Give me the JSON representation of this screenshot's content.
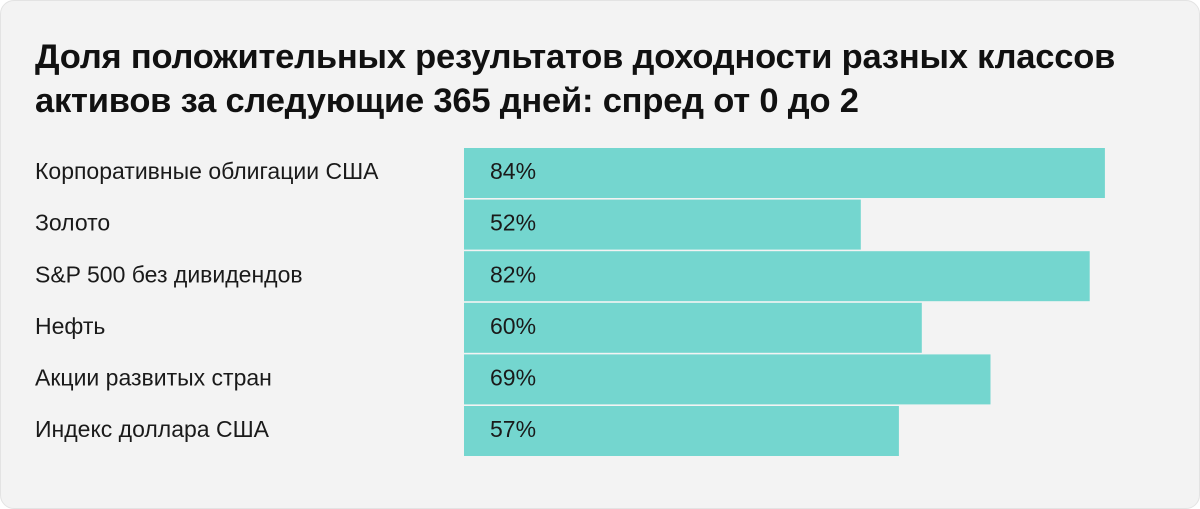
{
  "chart_data": {
    "type": "bar",
    "orientation": "horizontal",
    "title": "Доля положительных результатов доходности разных классов активов за следующие 365 дней: спред от 0 до 2",
    "categories": [
      "Корпоративные облигации США",
      "Золото",
      "S&P 500 без дивидендов",
      "Нефть",
      "Акции развитых стран",
      "Индекс доллара США"
    ],
    "values": [
      84,
      52,
      82,
      60,
      69,
      57
    ],
    "data_labels": [
      "84%",
      "52%",
      "82%",
      "60%",
      "69%",
      "57%"
    ],
    "unit": "%",
    "xlim": [
      0,
      100
    ],
    "grid": false,
    "legend": "none",
    "bar_color": "#74d6cf",
    "background_color": "#f3f3f3"
  }
}
